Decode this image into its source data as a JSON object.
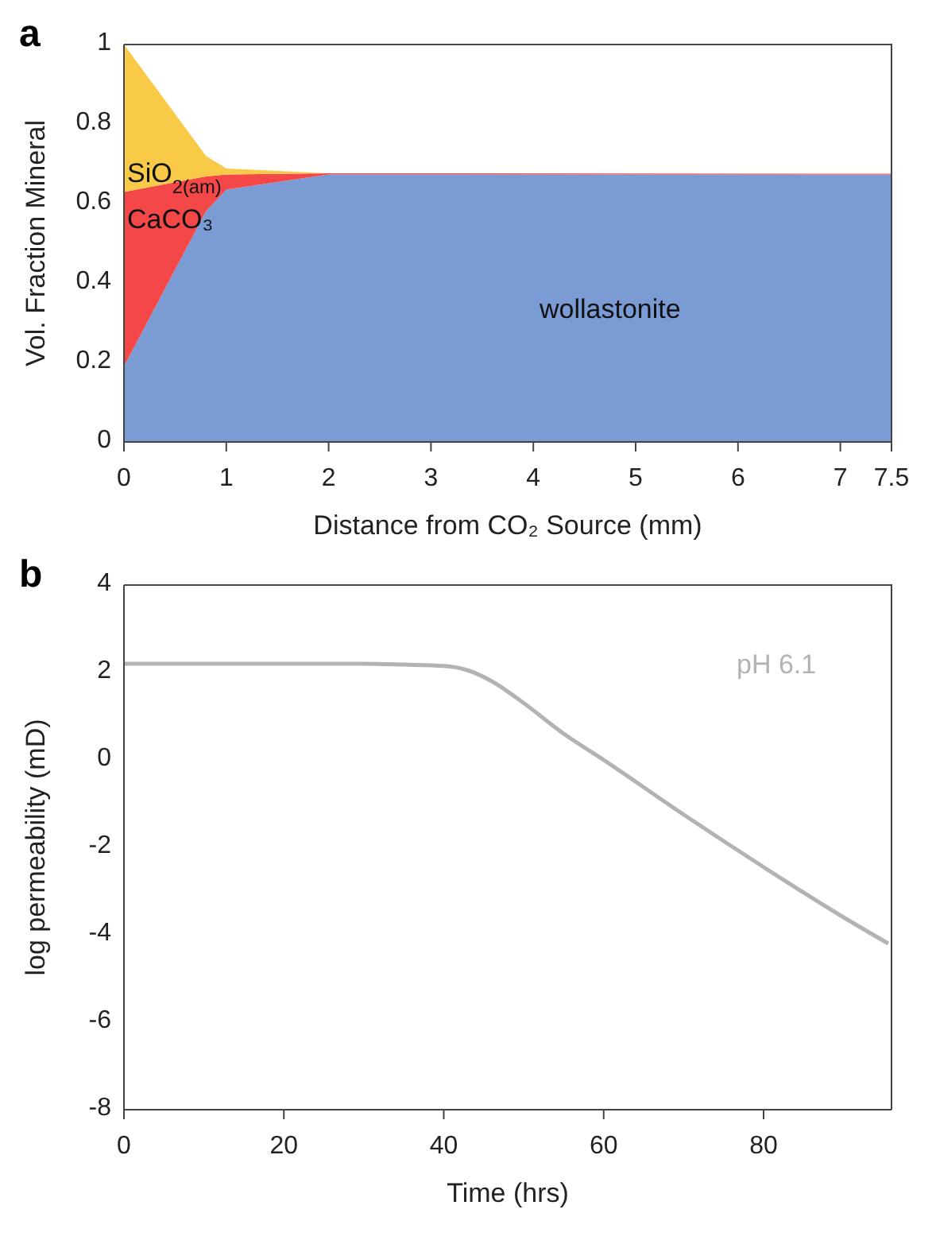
{
  "chart_data": [
    {
      "type": "area",
      "title": "a",
      "xlabel": "Distance from CO₂ Source (mm)",
      "ylabel": "Vol. Fraction Mineral",
      "stacked": true,
      "x": [
        0,
        0.8,
        1,
        2,
        3,
        7.5
      ],
      "series": [
        {
          "name": "wollastonite",
          "color": "#7b9bd4",
          "values": [
            0.19,
            0.58,
            0.635,
            0.673,
            0.673,
            0.673
          ]
        },
        {
          "name": "CaCO₃",
          "color": "#f44848",
          "values": [
            0.439,
            0.088,
            0.038,
            0.003,
            0.003,
            0.002
          ]
        },
        {
          "name": "SiO$_{2(am)}$",
          "color": "#f9ca48",
          "values": [
            0.371,
            0.052,
            0.015,
            0,
            0,
            0
          ]
        }
      ],
      "xlim": [
        0,
        7.5
      ],
      "xticks": [
        0,
        1,
        2,
        3,
        4,
        5,
        6,
        7,
        7.5
      ],
      "ylim": [
        0,
        1
      ],
      "yticks": [
        0,
        0.2,
        0.4,
        0.6,
        0.8,
        1
      ],
      "grid": false,
      "legend": false
    },
    {
      "type": "line",
      "title": "b",
      "xlabel": "Time (hrs)",
      "ylabel": "log permeability (mD)",
      "x": [
        0,
        10,
        20,
        30,
        35,
        40,
        43,
        46,
        50,
        55,
        60,
        70,
        80,
        90,
        95.6
      ],
      "series": [
        {
          "name": "pH 6.1",
          "color": "#b3b3b3",
          "values": [
            2.2,
            2.2,
            2.2,
            2.2,
            2.18,
            2.15,
            2.05,
            1.8,
            1.3,
            0.6,
            0.0,
            -1.25,
            -2.45,
            -3.6,
            -4.2
          ]
        }
      ],
      "xlim": [
        0,
        96
      ],
      "xticks": [
        0,
        20,
        40,
        60,
        80
      ],
      "ylim": [
        -8,
        4
      ],
      "yticks": [
        -8,
        -6,
        -4,
        -2,
        0,
        2,
        4
      ],
      "grid": false,
      "legend": false,
      "marker": "none",
      "line_style": "solid"
    }
  ]
}
